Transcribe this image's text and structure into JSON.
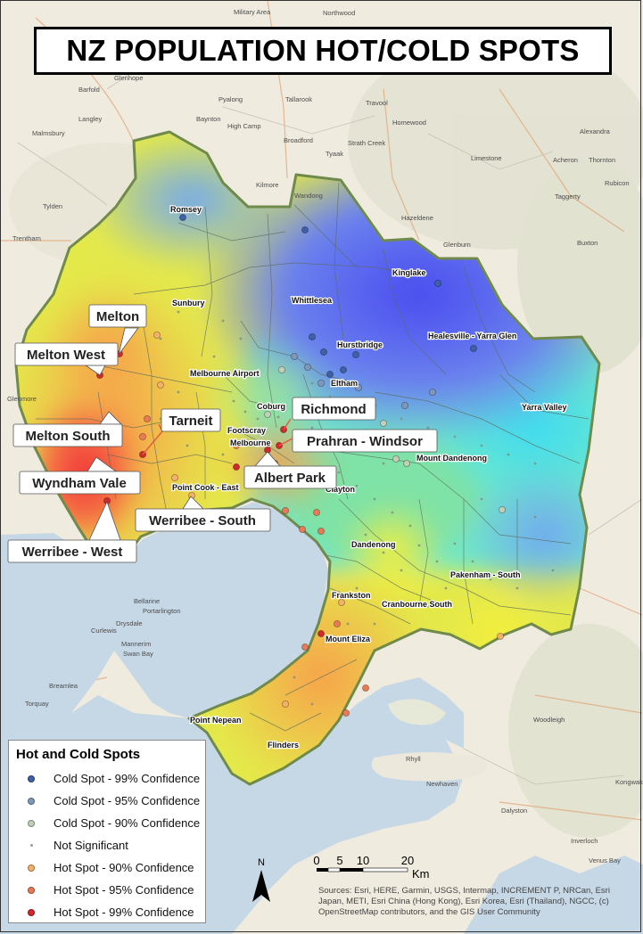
{
  "title": "NZ POPULATION HOT/COLD SPOTS",
  "legend": {
    "title": "Hot and Cold Spots",
    "items": [
      {
        "label": "Cold Spot - 99% Confidence",
        "color": "#3f5fa6",
        "size": "large"
      },
      {
        "label": "Cold Spot - 95% Confidence",
        "color": "#7f97b8",
        "size": "large"
      },
      {
        "label": "Cold Spot - 90% Confidence",
        "color": "#c0cfb5",
        "size": "large"
      },
      {
        "label": "Not Significant",
        "color": "#9a9a9a",
        "size": "small"
      },
      {
        "label": "Hot Spot - 90% Confidence",
        "color": "#f5b06a",
        "size": "large"
      },
      {
        "label": "Hot Spot - 95% Confidence",
        "color": "#e97a55",
        "size": "large"
      },
      {
        "label": "Hot Spot - 99% Confidence",
        "color": "#d0282d",
        "size": "large"
      }
    ]
  },
  "callouts": [
    "Melton",
    "Melton West",
    "Melton South",
    "Wyndham Vale",
    "Werribee - West",
    "Tarneit",
    "Werribee - South",
    "Richmond",
    "Prahran - Windsor",
    "Albert Park"
  ],
  "region_labels": [
    "Romsey",
    "Sunbury",
    "Whittlesea",
    "Kinglake",
    "Hurstbridge",
    "Healesville - Yarra Glen",
    "Melbourne Airport",
    "Eltham",
    "Yarra Valley",
    "Coburg",
    "Footscray",
    "Melbourne",
    "Point Cook - East",
    "Mount Dandenong",
    "Clayton",
    "Dandenong",
    "Pakenham - South",
    "Frankston",
    "Cranbourne South",
    "Mount Eliza",
    "Point Nepean",
    "Flinders"
  ],
  "basemap_labels": [
    "Military Area",
    "Northwood",
    "Glenhope",
    "Barfold",
    "Langley",
    "Malmsbury",
    "Tylden",
    "Trentham",
    "Glenmore",
    "Pyalong",
    "Baynton",
    "High Camp",
    "Tallarook",
    "Broadford",
    "Strath Creek",
    "Kilmore",
    "Wandong",
    "Tyaak",
    "Homewood",
    "Travool",
    "Hazeldene",
    "Glenburn",
    "Limestone",
    "Alexandra",
    "Acheron",
    "Thornton",
    "Rubicon",
    "Taggerty",
    "Buxton",
    "Bellarine",
    "Drysdale",
    "Curlewis",
    "Swan Bay",
    "Torquay",
    "Breamlea",
    "Mannerim",
    "Portarlington",
    "Rhyll",
    "Newhaven",
    "Dalyston",
    "Woodleigh",
    "Kongwak",
    "Inverloch",
    "Venus Bay"
  ],
  "scale_bar": {
    "ticks": [
      "0",
      "5",
      "10",
      "20"
    ],
    "unit": "Km"
  },
  "north_label": "N",
  "attribution": "Sources: Esri, HERE, Garmin, USGS, Intermap, INCREMENT P, NRCan, Esri Japan, METI, Esri China (Hong Kong), Esri Korea, Esri (Thailand), NGCC, (c) OpenStreetMap contributors, and the GIS User Community"
}
